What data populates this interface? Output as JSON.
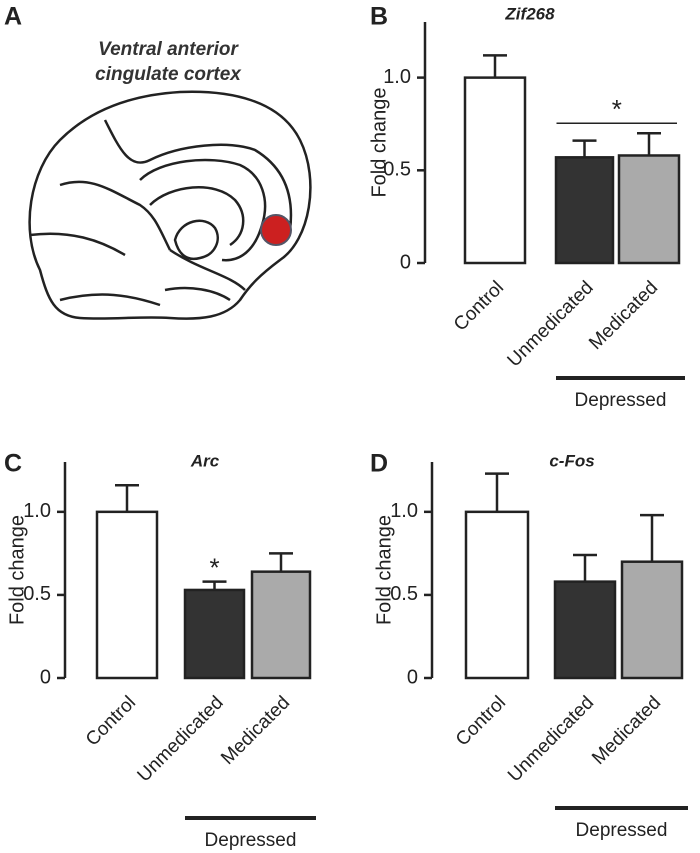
{
  "panel_a": {
    "label": "A",
    "title": [
      "Ventral anterior",
      "cingulate cortex"
    ]
  },
  "chart_data": [
    {
      "type": "bar",
      "panel": "B",
      "title": "Zif268",
      "ylabel": "Fold change",
      "categories": [
        "Control",
        "Unmedicated",
        "Medicated"
      ],
      "values": [
        1.0,
        0.57,
        0.58
      ],
      "errors": [
        0.12,
        0.09,
        0.12
      ],
      "colors": [
        "#ffffff",
        "#333333",
        "#aaaaaa"
      ],
      "ylim": [
        0,
        1.3
      ],
      "yticks": [
        0,
        0.5,
        {
          "value": 1,
          "label": "1.0"
        }
      ],
      "group": {
        "label": "Depressed",
        "categories": [
          "Unmedicated",
          "Medicated"
        ]
      },
      "significance": [
        {
          "text": "*",
          "categories": [
            "Unmedicated",
            "Medicated"
          ]
        }
      ]
    },
    {
      "type": "bar",
      "panel": "C",
      "title": "Arc",
      "ylabel": "Fold change",
      "categories": [
        "Control",
        "Unmedicated",
        "Medicated"
      ],
      "values": [
        1.0,
        0.53,
        0.64
      ],
      "errors": [
        0.16,
        0.05,
        0.11
      ],
      "colors": [
        "#ffffff",
        "#333333",
        "#aaaaaa"
      ],
      "ylim": [
        0,
        1.3
      ],
      "yticks": [
        0,
        0.5,
        {
          "value": 1,
          "label": "1.0"
        }
      ],
      "group": {
        "label": "Depressed",
        "categories": [
          "Unmedicated",
          "Medicated"
        ]
      },
      "significance": [
        {
          "text": "*",
          "categories": [
            "Unmedicated"
          ]
        }
      ]
    },
    {
      "type": "bar",
      "panel": "D",
      "title": "c-Fos",
      "ylabel": "Fold change",
      "categories": [
        "Control",
        "Unmedicated",
        "Medicated"
      ],
      "values": [
        1.0,
        0.58,
        0.7
      ],
      "errors": [
        0.23,
        0.16,
        0.28
      ],
      "colors": [
        "#ffffff",
        "#333333",
        "#aaaaaa"
      ],
      "ylim": [
        0,
        1.3
      ],
      "yticks": [
        0,
        0.5,
        {
          "value": 1,
          "label": "1.0"
        }
      ],
      "group": {
        "label": "Depressed",
        "categories": [
          "Unmedicated",
          "Medicated"
        ]
      }
    }
  ]
}
